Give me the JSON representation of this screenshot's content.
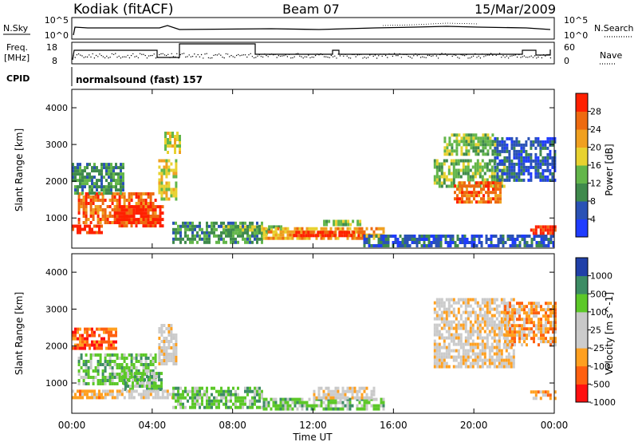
{
  "header": {
    "station": "Kodiak (fitACF)",
    "beam": "Beam 07",
    "date": "15/Mar/2009"
  },
  "panels": {
    "nsky_label": "N.Sky",
    "nsky_ticks": [
      "10^5",
      "10^0"
    ],
    "nsearch_label": "N.Search",
    "nsearch_ticks": [
      "10^5",
      "10^0"
    ],
    "freq_label_line1": "Freq.",
    "freq_label_line2": "[MHz]",
    "freq_ticks": [
      "18",
      "8"
    ],
    "nave_label": "Nave",
    "nave_ticks": [
      "60",
      "0"
    ],
    "cpid_label": "CPID",
    "cpid_text": "normalsound (fast) 157"
  },
  "colors": {
    "power": [
      "#1f3cff",
      "#2a52b5",
      "#3f8a4c",
      "#63b64a",
      "#e8d230",
      "#f0a020",
      "#ee6a10",
      "#ff2000"
    ],
    "velocity": [
      "#ff1010",
      "#ff6010",
      "#ffa020",
      "#cccccc",
      "#c8c8c8",
      "#5cc828",
      "#3c8c64",
      "#2040a8"
    ]
  },
  "chart_data": [
    {
      "type": "heatmap",
      "name": "power",
      "xlabel": "",
      "ylabel": "Slant Range [km]",
      "x_ticks": [
        "00:00",
        "04:00",
        "08:00",
        "12:00",
        "16:00",
        "20:00",
        "00:00"
      ],
      "y_ticks": [
        1000,
        2000,
        3000,
        4000
      ],
      "ylim": [
        180,
        4500
      ],
      "colorbar": {
        "label": "Power [dB]",
        "ticks": [
          4,
          8,
          12,
          16,
          20,
          24,
          28
        ]
      },
      "regions": [
        {
          "t0": 0.0,
          "t1": 1.5,
          "r0": 620,
          "r1": 820,
          "level": 7
        },
        {
          "t0": 0.3,
          "t1": 4.2,
          "r0": 900,
          "r1": 1700,
          "level": 6
        },
        {
          "t0": 2.2,
          "t1": 4.5,
          "r0": 800,
          "r1": 1350,
          "level": 7
        },
        {
          "t0": 0.0,
          "t1": 2.5,
          "r0": 1700,
          "r1": 2500,
          "level": 2
        },
        {
          "t0": 4.3,
          "t1": 5.2,
          "r0": 1500,
          "r1": 2600,
          "level": 4
        },
        {
          "t0": 4.6,
          "t1": 5.4,
          "r0": 2800,
          "r1": 3350,
          "level": 4
        },
        {
          "t0": 5.0,
          "t1": 9.5,
          "r0": 350,
          "r1": 900,
          "level": 2
        },
        {
          "t0": 7.5,
          "t1": 10.5,
          "r0": 600,
          "r1": 800,
          "level": 3
        },
        {
          "t0": 9.5,
          "t1": 15.5,
          "r0": 450,
          "r1": 750,
          "level": 5
        },
        {
          "t0": 11.0,
          "t1": 14.5,
          "r0": 500,
          "r1": 650,
          "level": 7
        },
        {
          "t0": 12.5,
          "t1": 14.5,
          "r0": 800,
          "r1": 950,
          "level": 3
        },
        {
          "t0": 14.5,
          "t1": 24.0,
          "r0": 250,
          "r1": 550,
          "level": 1
        },
        {
          "t0": 18.0,
          "t1": 21.5,
          "r0": 1900,
          "r1": 2600,
          "level": 3
        },
        {
          "t0": 19.0,
          "t1": 21.3,
          "r0": 1400,
          "r1": 2000,
          "level": 6
        },
        {
          "t0": 18.5,
          "t1": 21.0,
          "r0": 2700,
          "r1": 3300,
          "level": 3
        },
        {
          "t0": 21.0,
          "t1": 24.0,
          "r0": 2000,
          "r1": 3200,
          "level": 1
        },
        {
          "t0": 22.8,
          "t1": 24.0,
          "r0": 600,
          "r1": 800,
          "level": 7
        }
      ]
    },
    {
      "type": "heatmap",
      "name": "velocity",
      "xlabel": "Time UT",
      "ylabel": "Slant Range [km]",
      "x_ticks": [
        "00:00",
        "04:00",
        "08:00",
        "12:00",
        "16:00",
        "20:00",
        "00:00"
      ],
      "y_ticks": [
        1000,
        2000,
        3000,
        4000
      ],
      "ylim": [
        180,
        4500
      ],
      "colorbar": {
        "label": "Velocity [m s^-1]",
        "ticks": [
          "1000",
          "500",
          "100",
          "25",
          "-25",
          "-100",
          "-500",
          "-1000"
        ]
      },
      "regions": [
        {
          "t0": 0.0,
          "t1": 1.5,
          "r0": 620,
          "r1": 820,
          "level": 2
        },
        {
          "t0": 0.0,
          "t1": 2.2,
          "r0": 1900,
          "r1": 2500,
          "level": 1
        },
        {
          "t0": 0.3,
          "t1": 4.2,
          "r0": 1000,
          "r1": 1800,
          "level": 5
        },
        {
          "t0": 2.5,
          "t1": 4.5,
          "r0": 800,
          "r1": 1300,
          "level": 5
        },
        {
          "t0": 1.5,
          "t1": 5.0,
          "r0": 620,
          "r1": 820,
          "level": 3
        },
        {
          "t0": 4.3,
          "t1": 5.2,
          "r0": 1500,
          "r1": 2600,
          "level": 3
        },
        {
          "t0": 5.0,
          "t1": 9.5,
          "r0": 350,
          "r1": 900,
          "level": 5
        },
        {
          "t0": 9.5,
          "t1": 15.5,
          "r0": 300,
          "r1": 600,
          "level": 5
        },
        {
          "t0": 12.0,
          "t1": 15.0,
          "r0": 600,
          "r1": 900,
          "level": 3
        },
        {
          "t0": 18.0,
          "t1": 22.0,
          "r0": 1400,
          "r1": 3300,
          "level": 3
        },
        {
          "t0": 21.5,
          "t1": 24.0,
          "r0": 2000,
          "r1": 3200,
          "level": 2
        },
        {
          "t0": 22.8,
          "t1": 24.0,
          "r0": 600,
          "r1": 800,
          "level": 2
        }
      ]
    }
  ]
}
